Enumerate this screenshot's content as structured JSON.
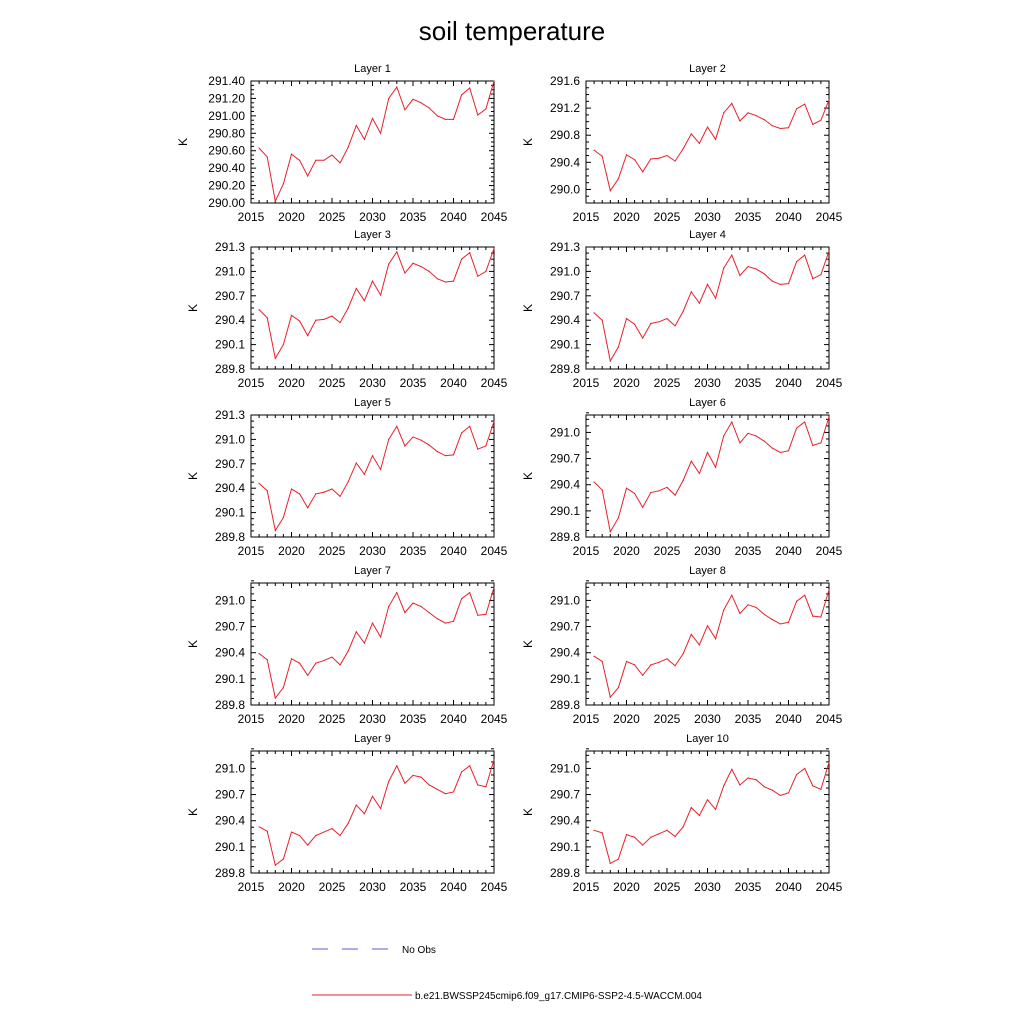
{
  "title": "soil temperature",
  "legend": {
    "obs_label": "No Obs",
    "obs_color": "#5b5bd6",
    "model_label": "b.e21.BWSSP245cmip6.f09_g17.CMIP6-SSP2-4.5-WACCM.004",
    "model_color": "#e8202a"
  },
  "chart_data": [
    {
      "type": "line",
      "title": "Layer 1",
      "xlabel": "",
      "ylabel": "K",
      "xlim": [
        2015,
        2045
      ],
      "ylim": [
        290.0,
        291.4
      ],
      "xticks": [
        2015,
        2020,
        2025,
        2030,
        2035,
        2040,
        2045
      ],
      "yticks": [
        290.0,
        290.2,
        290.4,
        290.6,
        290.8,
        291.0,
        291.2,
        291.4
      ],
      "ytick_labels": [
        "290.00",
        "290.20",
        "290.40",
        "290.60",
        "290.80",
        "291.00",
        "291.20",
        "291.40"
      ],
      "grid": false,
      "x": [
        2016,
        2017,
        2018,
        2019,
        2020,
        2021,
        2022,
        2023,
        2024,
        2025,
        2026,
        2027,
        2028,
        2029,
        2030,
        2031,
        2032,
        2033,
        2034,
        2035,
        2036,
        2037,
        2038,
        2039,
        2040,
        2041,
        2042,
        2043,
        2044,
        2045
      ],
      "series": [
        {
          "name": "b.e21.BWSSP245cmip6.f09_g17.CMIP6-SSP2-4.5-WACCM.004",
          "values": [
            290.63,
            290.53,
            290.02,
            290.22,
            290.56,
            290.49,
            290.31,
            290.49,
            290.49,
            290.55,
            290.46,
            290.64,
            290.89,
            290.73,
            290.97,
            290.8,
            291.2,
            291.33,
            291.07,
            291.19,
            291.15,
            291.09,
            291.0,
            290.96,
            290.96,
            291.24,
            291.32,
            291.01,
            291.08,
            291.4
          ]
        }
      ]
    },
    {
      "type": "line",
      "title": "Layer 2",
      "xlabel": "",
      "ylabel": "K",
      "xlim": [
        2015,
        2045
      ],
      "ylim": [
        289.8,
        291.6
      ],
      "xticks": [
        2015,
        2020,
        2025,
        2030,
        2035,
        2040,
        2045
      ],
      "yticks": [
        290.0,
        290.4,
        290.8,
        291.2,
        291.6
      ],
      "ytick_labels": [
        "290.0",
        "290.4",
        "290.8",
        "291.2",
        "291.6"
      ],
      "grid": false,
      "x": [
        2016,
        2017,
        2018,
        2019,
        2020,
        2021,
        2022,
        2023,
        2024,
        2025,
        2026,
        2027,
        2028,
        2029,
        2030,
        2031,
        2032,
        2033,
        2034,
        2035,
        2036,
        2037,
        2038,
        2039,
        2040,
        2041,
        2042,
        2043,
        2044,
        2045
      ],
      "series": [
        {
          "name": "b.e21.BWSSP245cmip6.f09_g17.CMIP6-SSP2-4.5-WACCM.004",
          "values": [
            290.58,
            290.49,
            289.98,
            290.16,
            290.51,
            290.44,
            290.26,
            290.45,
            290.46,
            290.5,
            290.42,
            290.6,
            290.82,
            290.68,
            290.92,
            290.74,
            291.13,
            291.27,
            291.01,
            291.13,
            291.09,
            291.03,
            290.94,
            290.9,
            290.91,
            291.19,
            291.26,
            290.96,
            291.02,
            291.32
          ]
        }
      ]
    },
    {
      "type": "line",
      "title": "Layer 3",
      "xlabel": "",
      "ylabel": "K",
      "xlim": [
        2015,
        2045
      ],
      "ylim": [
        289.8,
        291.3
      ],
      "xticks": [
        2015,
        2020,
        2025,
        2030,
        2035,
        2040,
        2045
      ],
      "yticks": [
        289.8,
        290.1,
        290.4,
        290.7,
        291.0,
        291.3
      ],
      "ytick_labels": [
        "289.8",
        "290.1",
        "290.4",
        "290.7",
        "291.0",
        "291.3"
      ],
      "grid": false,
      "x": [
        2016,
        2017,
        2018,
        2019,
        2020,
        2021,
        2022,
        2023,
        2024,
        2025,
        2026,
        2027,
        2028,
        2029,
        2030,
        2031,
        2032,
        2033,
        2034,
        2035,
        2036,
        2037,
        2038,
        2039,
        2040,
        2041,
        2042,
        2043,
        2044,
        2045
      ],
      "series": [
        {
          "name": "b.e21.BWSSP245cmip6.f09_g17.CMIP6-SSP2-4.5-WACCM.004",
          "values": [
            290.53,
            290.43,
            289.93,
            290.1,
            290.46,
            290.39,
            290.21,
            290.4,
            290.41,
            290.45,
            290.37,
            290.55,
            290.79,
            290.64,
            290.88,
            290.71,
            291.09,
            291.24,
            290.98,
            291.1,
            291.06,
            291.0,
            290.91,
            290.87,
            290.88,
            291.15,
            291.23,
            290.94,
            291.0,
            291.28
          ]
        }
      ]
    },
    {
      "type": "line",
      "title": "Layer 4",
      "xlabel": "",
      "ylabel": "K",
      "xlim": [
        2015,
        2045
      ],
      "ylim": [
        289.8,
        291.3
      ],
      "xticks": [
        2015,
        2020,
        2025,
        2030,
        2035,
        2040,
        2045
      ],
      "yticks": [
        289.8,
        290.1,
        290.4,
        290.7,
        291.0,
        291.3
      ],
      "ytick_labels": [
        "289.8",
        "290.1",
        "290.4",
        "290.7",
        "291.0",
        "291.3"
      ],
      "grid": false,
      "x": [
        2016,
        2017,
        2018,
        2019,
        2020,
        2021,
        2022,
        2023,
        2024,
        2025,
        2026,
        2027,
        2028,
        2029,
        2030,
        2031,
        2032,
        2033,
        2034,
        2035,
        2036,
        2037,
        2038,
        2039,
        2040,
        2041,
        2042,
        2043,
        2044,
        2045
      ],
      "series": [
        {
          "name": "b.e21.BWSSP245cmip6.f09_g17.CMIP6-SSP2-4.5-WACCM.004",
          "values": [
            290.49,
            290.4,
            289.9,
            290.07,
            290.42,
            290.35,
            290.18,
            290.36,
            290.38,
            290.42,
            290.33,
            290.51,
            290.75,
            290.61,
            290.84,
            290.67,
            291.04,
            291.2,
            290.95,
            291.06,
            291.03,
            290.97,
            290.88,
            290.84,
            290.85,
            291.12,
            291.2,
            290.91,
            290.96,
            291.25
          ]
        }
      ]
    },
    {
      "type": "line",
      "title": "Layer 5",
      "xlabel": "",
      "ylabel": "K",
      "xlim": [
        2015,
        2045
      ],
      "ylim": [
        289.8,
        291.3
      ],
      "xticks": [
        2015,
        2020,
        2025,
        2030,
        2035,
        2040,
        2045
      ],
      "yticks": [
        289.8,
        290.1,
        290.4,
        290.7,
        291.0,
        291.3
      ],
      "ytick_labels": [
        "289.8",
        "290.1",
        "290.4",
        "290.7",
        "291.0",
        "291.3"
      ],
      "grid": false,
      "x": [
        2016,
        2017,
        2018,
        2019,
        2020,
        2021,
        2022,
        2023,
        2024,
        2025,
        2026,
        2027,
        2028,
        2029,
        2030,
        2031,
        2032,
        2033,
        2034,
        2035,
        2036,
        2037,
        2038,
        2039,
        2040,
        2041,
        2042,
        2043,
        2044,
        2045
      ],
      "series": [
        {
          "name": "b.e21.BWSSP245cmip6.f09_g17.CMIP6-SSP2-4.5-WACCM.004",
          "values": [
            290.46,
            290.37,
            289.88,
            290.04,
            290.39,
            290.33,
            290.16,
            290.33,
            290.35,
            290.39,
            290.3,
            290.48,
            290.71,
            290.57,
            290.8,
            290.63,
            291.0,
            291.16,
            290.92,
            291.03,
            290.99,
            290.93,
            290.85,
            290.8,
            290.81,
            291.08,
            291.16,
            290.88,
            290.92,
            291.22
          ]
        }
      ]
    },
    {
      "type": "line",
      "title": "Layer 6",
      "xlabel": "",
      "ylabel": "K",
      "xlim": [
        2015,
        2045
      ],
      "ylim": [
        289.8,
        291.2
      ],
      "xticks": [
        2015,
        2020,
        2025,
        2030,
        2035,
        2040,
        2045
      ],
      "yticks": [
        289.8,
        290.1,
        290.4,
        290.7,
        291.0
      ],
      "ytick_labels": [
        "289.8",
        "290.1",
        "290.4",
        "290.7",
        "291.0"
      ],
      "grid": false,
      "x": [
        2016,
        2017,
        2018,
        2019,
        2020,
        2021,
        2022,
        2023,
        2024,
        2025,
        2026,
        2027,
        2028,
        2029,
        2030,
        2031,
        2032,
        2033,
        2034,
        2035,
        2036,
        2037,
        2038,
        2039,
        2040,
        2041,
        2042,
        2043,
        2044,
        2045
      ],
      "series": [
        {
          "name": "b.e21.BWSSP245cmip6.f09_g17.CMIP6-SSP2-4.5-WACCM.004",
          "values": [
            290.43,
            290.34,
            289.86,
            290.02,
            290.36,
            290.3,
            290.14,
            290.31,
            290.33,
            290.37,
            290.28,
            290.45,
            290.67,
            290.53,
            290.77,
            290.6,
            290.96,
            291.12,
            290.88,
            290.99,
            290.96,
            290.9,
            290.82,
            290.77,
            290.79,
            291.05,
            291.12,
            290.85,
            290.88,
            291.18
          ]
        }
      ]
    },
    {
      "type": "line",
      "title": "Layer 7",
      "xlabel": "",
      "ylabel": "K",
      "xlim": [
        2015,
        2045
      ],
      "ylim": [
        289.8,
        291.2
      ],
      "xticks": [
        2015,
        2020,
        2025,
        2030,
        2035,
        2040,
        2045
      ],
      "yticks": [
        289.8,
        290.1,
        290.4,
        290.7,
        291.0
      ],
      "ytick_labels": [
        "289.8",
        "290.1",
        "290.4",
        "290.7",
        "291.0"
      ],
      "grid": false,
      "x": [
        2016,
        2017,
        2018,
        2019,
        2020,
        2021,
        2022,
        2023,
        2024,
        2025,
        2026,
        2027,
        2028,
        2029,
        2030,
        2031,
        2032,
        2033,
        2034,
        2035,
        2036,
        2037,
        2038,
        2039,
        2040,
        2041,
        2042,
        2043,
        2044,
        2045
      ],
      "series": [
        {
          "name": "b.e21.BWSSP245cmip6.f09_g17.CMIP6-SSP2-4.5-WACCM.004",
          "values": [
            290.39,
            290.32,
            289.88,
            290.0,
            290.33,
            290.28,
            290.14,
            290.28,
            290.31,
            290.35,
            290.26,
            290.42,
            290.64,
            290.51,
            290.74,
            290.58,
            290.93,
            291.09,
            290.86,
            290.97,
            290.93,
            290.86,
            290.79,
            290.74,
            290.76,
            291.02,
            291.09,
            290.83,
            290.84,
            291.15
          ]
        }
      ]
    },
    {
      "type": "line",
      "title": "Layer 8",
      "xlabel": "",
      "ylabel": "K",
      "xlim": [
        2015,
        2045
      ],
      "ylim": [
        289.8,
        291.2
      ],
      "xticks": [
        2015,
        2020,
        2025,
        2030,
        2035,
        2040,
        2045
      ],
      "yticks": [
        289.8,
        290.1,
        290.4,
        290.7,
        291.0
      ],
      "ytick_labels": [
        "289.8",
        "290.1",
        "290.4",
        "290.7",
        "291.0"
      ],
      "grid": false,
      "x": [
        2016,
        2017,
        2018,
        2019,
        2020,
        2021,
        2022,
        2023,
        2024,
        2025,
        2026,
        2027,
        2028,
        2029,
        2030,
        2031,
        2032,
        2033,
        2034,
        2035,
        2036,
        2037,
        2038,
        2039,
        2040,
        2041,
        2042,
        2043,
        2044,
        2045
      ],
      "series": [
        {
          "name": "b.e21.BWSSP245cmip6.f09_g17.CMIP6-SSP2-4.5-WACCM.004",
          "values": [
            290.36,
            290.3,
            289.89,
            290.0,
            290.3,
            290.26,
            290.14,
            290.26,
            290.29,
            290.33,
            290.25,
            290.39,
            290.61,
            290.49,
            290.71,
            290.56,
            290.89,
            291.06,
            290.85,
            290.95,
            290.92,
            290.84,
            290.78,
            290.73,
            290.75,
            290.99,
            291.06,
            290.82,
            290.81,
            291.12
          ]
        }
      ]
    },
    {
      "type": "line",
      "title": "Layer 9",
      "xlabel": "",
      "ylabel": "K",
      "xlim": [
        2015,
        2045
      ],
      "ylim": [
        289.8,
        291.2
      ],
      "xticks": [
        2015,
        2020,
        2025,
        2030,
        2035,
        2040,
        2045
      ],
      "yticks": [
        289.8,
        290.1,
        290.4,
        290.7,
        291.0
      ],
      "ytick_labels": [
        "289.8",
        "290.1",
        "290.4",
        "290.7",
        "291.0"
      ],
      "grid": false,
      "x": [
        2016,
        2017,
        2018,
        2019,
        2020,
        2021,
        2022,
        2023,
        2024,
        2025,
        2026,
        2027,
        2028,
        2029,
        2030,
        2031,
        2032,
        2033,
        2034,
        2035,
        2036,
        2037,
        2038,
        2039,
        2040,
        2041,
        2042,
        2043,
        2044,
        2045
      ],
      "series": [
        {
          "name": "b.e21.BWSSP245cmip6.f09_g17.CMIP6-SSP2-4.5-WACCM.004",
          "values": [
            290.33,
            290.28,
            289.89,
            289.96,
            290.27,
            290.23,
            290.12,
            290.23,
            290.27,
            290.31,
            290.23,
            290.37,
            290.58,
            290.48,
            290.68,
            290.54,
            290.85,
            291.03,
            290.83,
            290.92,
            290.9,
            290.81,
            290.76,
            290.71,
            290.73,
            290.96,
            291.03,
            290.81,
            290.79,
            291.1
          ]
        }
      ]
    },
    {
      "type": "line",
      "title": "Layer 10",
      "xlabel": "",
      "ylabel": "K",
      "xlim": [
        2015,
        2045
      ],
      "ylim": [
        289.8,
        291.2
      ],
      "xticks": [
        2015,
        2020,
        2025,
        2030,
        2035,
        2040,
        2045
      ],
      "yticks": [
        289.8,
        290.1,
        290.4,
        290.7,
        291.0
      ],
      "ytick_labels": [
        "289.8",
        "290.1",
        "290.4",
        "290.7",
        "291.0"
      ],
      "grid": false,
      "x": [
        2016,
        2017,
        2018,
        2019,
        2020,
        2021,
        2022,
        2023,
        2024,
        2025,
        2026,
        2027,
        2028,
        2029,
        2030,
        2031,
        2032,
        2033,
        2034,
        2035,
        2036,
        2037,
        2038,
        2039,
        2040,
        2041,
        2042,
        2043,
        2044,
        2045
      ],
      "series": [
        {
          "name": "b.e21.BWSSP245cmip6.f09_g17.CMIP6-SSP2-4.5-WACCM.004",
          "values": [
            290.29,
            290.26,
            289.91,
            289.96,
            290.24,
            290.21,
            290.12,
            290.21,
            290.25,
            290.29,
            290.22,
            290.33,
            290.55,
            290.46,
            290.64,
            290.53,
            290.8,
            290.99,
            290.81,
            290.89,
            290.87,
            290.79,
            290.75,
            290.69,
            290.72,
            290.93,
            291.0,
            290.8,
            290.76,
            291.07
          ]
        }
      ]
    }
  ]
}
